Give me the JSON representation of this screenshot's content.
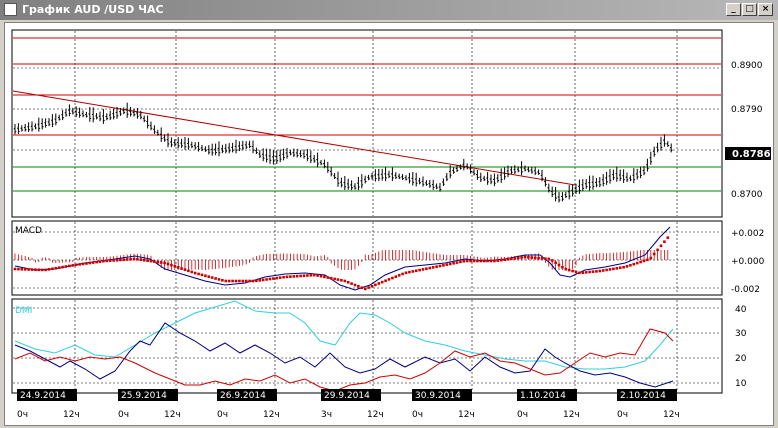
{
  "window": {
    "title": "График AUD /USD  ЧАС",
    "minimize": "_",
    "maximize": "□",
    "close": "×"
  },
  "price_panel": {
    "y_ticks": [
      "0.8900",
      "0.8790",
      "0.8700"
    ],
    "current_price": "0.8786"
  },
  "macd_panel": {
    "label": "MACD",
    "y_ticks": [
      "+0.002",
      "+0.000",
      "-0.002"
    ]
  },
  "dmi_panel": {
    "label": "DMI",
    "y_ticks": [
      "40",
      "30",
      "20",
      "10"
    ]
  },
  "dates": [
    "24.9.2014",
    "25.9.2014",
    "26.9.2014",
    "29.9.2014",
    "30.9.2014",
    "1.10.2014",
    "2.10.2014"
  ],
  "hours": [
    {
      "h0": "0ч",
      "h12": "12ч"
    },
    {
      "h0": "0ч",
      "h12": "12ч"
    },
    {
      "h0": "0ч",
      "h12": "12ч"
    },
    {
      "h0": "3ч",
      "h12": "12ч"
    },
    {
      "h0": "0ч",
      "h12": "12ч"
    },
    {
      "h0": "0ч",
      "h12": "12ч"
    },
    {
      "h0": "0ч",
      "h12": "12ч"
    }
  ],
  "colors": {
    "resistance": "#d00000",
    "support": "#008000",
    "trend": "#b00000",
    "macd_line": "#000080",
    "macd_signal": "#d00000",
    "dmi_adx": "#30d0e0",
    "dmi_plus": "#000080",
    "dmi_minus": "#d00000",
    "price_box": "#000000"
  }
}
